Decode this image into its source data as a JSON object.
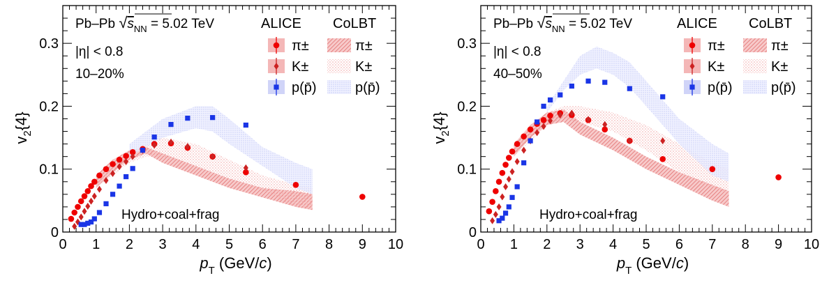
{
  "figure": {
    "shared": {
      "collision": "Pb–Pb",
      "energy_prefix": "√",
      "energy_symbol": "s",
      "energy_sub": "NN",
      "energy_value": "= 5.02 TeV",
      "eta_cut": "|η| < 0.8",
      "model_label": "Hydro+coal+frag",
      "legend_headers": [
        "ALICE",
        "CoLBT"
      ],
      "legend_data_labels": [
        "π±",
        "K±",
        "p(p̄)"
      ],
      "legend_model_labels": [
        "π±",
        "K±",
        "p(p̄)"
      ]
    }
  },
  "chart_data": [
    {
      "type": "scatter",
      "centrality": "10–20%",
      "xlabel": "pT (GeV/c)",
      "ylabel": "v2{4}",
      "xlim": [
        0,
        10
      ],
      "ylim": [
        0,
        0.36
      ],
      "xticks": [
        "0",
        "1",
        "2",
        "3",
        "4",
        "5",
        "6",
        "7",
        "8",
        "9",
        "10"
      ],
      "yticks": [
        "0",
        "0.1",
        "0.2",
        "0.3"
      ],
      "series": [
        {
          "name": "π±",
          "kind": "data",
          "color": "#ee0000",
          "marker": "circle",
          "x": [
            0.25,
            0.35,
            0.45,
            0.55,
            0.65,
            0.75,
            0.85,
            0.95,
            1.1,
            1.3,
            1.5,
            1.7,
            1.9,
            2.1,
            2.4,
            2.75,
            3.25,
            3.75,
            4.5,
            5.5,
            7.0,
            9.0
          ],
          "y": [
            0.021,
            0.031,
            0.04,
            0.049,
            0.057,
            0.065,
            0.073,
            0.08,
            0.09,
            0.1,
            0.108,
            0.115,
            0.121,
            0.127,
            0.132,
            0.14,
            0.141,
            0.134,
            0.12,
            0.095,
            0.075,
            0.056
          ]
        },
        {
          "name": "K±",
          "kind": "data",
          "color": "#cc2222",
          "marker": "diamond",
          "x": [
            0.35,
            0.45,
            0.55,
            0.65,
            0.75,
            0.85,
            0.95,
            1.1,
            1.3,
            1.5,
            1.7,
            1.9,
            2.1,
            2.4,
            2.75,
            3.25,
            3.75,
            4.5,
            5.5
          ],
          "y": [
            0.009,
            0.016,
            0.024,
            0.033,
            0.041,
            0.049,
            0.057,
            0.068,
            0.082,
            0.093,
            0.104,
            0.112,
            0.12,
            0.13,
            0.138,
            0.143,
            0.136,
            0.12,
            0.102
          ]
        },
        {
          "name": "p(p̄)",
          "kind": "data",
          "color": "#1a35e6",
          "marker": "square",
          "x": [
            0.55,
            0.65,
            0.75,
            0.85,
            0.95,
            1.1,
            1.3,
            1.5,
            1.7,
            1.9,
            2.1,
            2.4,
            2.75,
            3.25,
            3.75,
            4.5,
            5.5
          ],
          "y": [
            0.012,
            0.012,
            0.014,
            0.016,
            0.021,
            0.031,
            0.045,
            0.06,
            0.073,
            0.088,
            0.101,
            0.13,
            0.151,
            0.171,
            0.181,
            0.182,
            0.17
          ]
        },
        {
          "name": "π±",
          "kind": "model",
          "x": [
            1.0,
            1.5,
            2.0,
            2.5,
            3.0,
            4.0,
            5.0,
            6.0,
            7.0,
            7.5
          ],
          "y_low": [
            0.07,
            0.095,
            0.115,
            0.125,
            0.11,
            0.09,
            0.07,
            0.055,
            0.04,
            0.035
          ],
          "y_high": [
            0.09,
            0.115,
            0.13,
            0.135,
            0.125,
            0.105,
            0.085,
            0.07,
            0.065,
            0.06
          ]
        },
        {
          "name": "K±",
          "kind": "model",
          "x": [
            1.0,
            2.0,
            2.5,
            3.0,
            4.0,
            5.0,
            6.0,
            7.0,
            7.5
          ],
          "y_low": [
            0.07,
            0.11,
            0.12,
            0.12,
            0.105,
            0.085,
            0.065,
            0.04,
            0.035
          ],
          "y_high": [
            0.09,
            0.125,
            0.14,
            0.15,
            0.14,
            0.115,
            0.09,
            0.075,
            0.07
          ]
        },
        {
          "name": "p(p̄)",
          "kind": "model",
          "x": [
            2.0,
            3.0,
            4.0,
            4.5,
            5.0,
            6.0,
            7.0,
            7.5
          ],
          "y_low": [
            0.12,
            0.15,
            0.165,
            0.16,
            0.14,
            0.105,
            0.07,
            0.06
          ],
          "y_high": [
            0.14,
            0.18,
            0.2,
            0.2,
            0.18,
            0.135,
            0.11,
            0.1
          ]
        }
      ]
    },
    {
      "type": "scatter",
      "centrality": "40–50%",
      "xlabel": "pT (GeV/c)",
      "ylabel": "v2{4}",
      "xlim": [
        0,
        10
      ],
      "ylim": [
        0,
        0.36
      ],
      "xticks": [
        "0",
        "1",
        "2",
        "3",
        "4",
        "5",
        "6",
        "7",
        "8",
        "9",
        "10"
      ],
      "yticks": [
        "0",
        "0.1",
        "0.2",
        "0.3"
      ],
      "series": [
        {
          "name": "π±",
          "kind": "data",
          "color": "#ee0000",
          "marker": "circle",
          "x": [
            0.25,
            0.35,
            0.45,
            0.55,
            0.65,
            0.75,
            0.85,
            0.95,
            1.1,
            1.3,
            1.5,
            1.7,
            1.9,
            2.1,
            2.4,
            2.75,
            3.25,
            3.75,
            4.5,
            5.5,
            7.0,
            9.0
          ],
          "y": [
            0.033,
            0.048,
            0.065,
            0.08,
            0.094,
            0.107,
            0.118,
            0.128,
            0.14,
            0.152,
            0.163,
            0.172,
            0.178,
            0.185,
            0.189,
            0.186,
            0.178,
            0.163,
            0.145,
            0.116,
            0.1,
            0.087
          ]
        },
        {
          "name": "K±",
          "kind": "data",
          "color": "#cc2222",
          "marker": "diamond",
          "x": [
            0.35,
            0.45,
            0.55,
            0.65,
            0.75,
            0.85,
            0.95,
            1.1,
            1.3,
            1.5,
            1.7,
            1.9,
            2.1,
            2.4,
            2.75,
            3.25,
            3.75,
            4.5,
            5.5
          ],
          "y": [
            0.018,
            0.028,
            0.04,
            0.056,
            0.072,
            0.084,
            0.096,
            0.112,
            0.13,
            0.145,
            0.158,
            0.168,
            0.177,
            0.186,
            0.189,
            0.179,
            0.171,
            0.145,
            0.145
          ]
        },
        {
          "name": "p(p̄)",
          "kind": "data",
          "color": "#1a35e6",
          "marker": "square",
          "x": [
            0.55,
            0.65,
            0.75,
            0.85,
            0.95,
            1.1,
            1.3,
            1.5,
            1.7,
            1.9,
            2.1,
            2.4,
            2.75,
            3.25,
            3.75,
            4.5,
            5.5
          ],
          "y": [
            0.018,
            0.022,
            0.03,
            0.04,
            0.055,
            0.072,
            0.11,
            0.145,
            0.175,
            0.2,
            0.21,
            0.218,
            0.232,
            0.24,
            0.238,
            0.228,
            0.215
          ]
        },
        {
          "name": "π±",
          "kind": "model",
          "x": [
            1.0,
            1.5,
            2.0,
            2.5,
            3.0,
            4.0,
            5.0,
            6.0,
            7.0,
            7.5
          ],
          "y_low": [
            0.12,
            0.15,
            0.17,
            0.175,
            0.155,
            0.13,
            0.1,
            0.075,
            0.05,
            0.04
          ],
          "y_high": [
            0.14,
            0.17,
            0.19,
            0.195,
            0.175,
            0.15,
            0.12,
            0.095,
            0.075,
            0.065
          ]
        },
        {
          "name": "K±",
          "kind": "model",
          "x": [
            1.0,
            2.0,
            2.5,
            3.0,
            4.0,
            5.0,
            6.0,
            7.0,
            7.5
          ],
          "y_low": [
            0.12,
            0.17,
            0.18,
            0.175,
            0.16,
            0.13,
            0.095,
            0.07,
            0.06
          ],
          "y_high": [
            0.14,
            0.19,
            0.2,
            0.2,
            0.19,
            0.17,
            0.14,
            0.11,
            0.1
          ]
        },
        {
          "name": "p(p̄)",
          "kind": "model",
          "x": [
            2.0,
            2.5,
            3.0,
            3.5,
            4.0,
            4.5,
            5.0,
            6.0,
            7.0,
            7.5
          ],
          "y_low": [
            0.19,
            0.225,
            0.25,
            0.26,
            0.25,
            0.23,
            0.2,
            0.14,
            0.09,
            0.08
          ],
          "y_high": [
            0.2,
            0.24,
            0.28,
            0.295,
            0.285,
            0.27,
            0.24,
            0.18,
            0.14,
            0.125
          ]
        }
      ]
    }
  ]
}
